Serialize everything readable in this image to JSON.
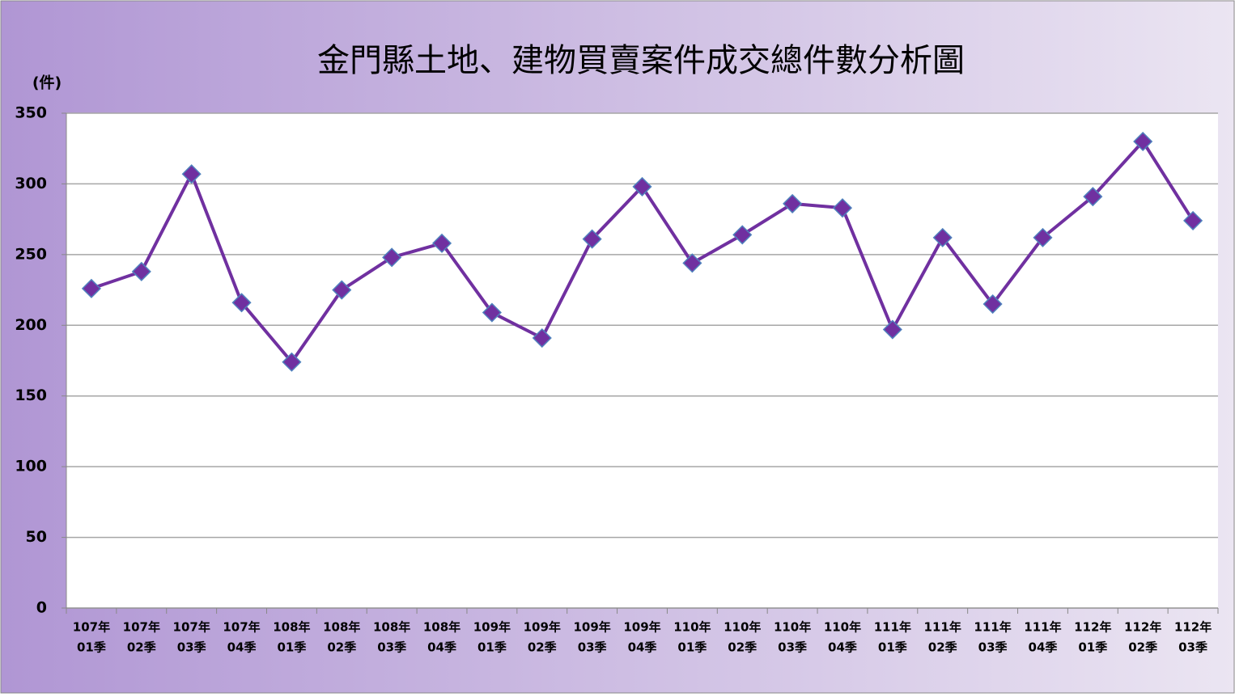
{
  "chart_data": {
    "type": "line",
    "title": "金門縣土地、建物買賣案件成交總件數分析圖",
    "y_label": "(件)",
    "categories": [
      [
        "107年",
        "01季"
      ],
      [
        "107年",
        "02季"
      ],
      [
        "107年",
        "03季"
      ],
      [
        "107年",
        "04季"
      ],
      [
        "108年",
        "01季"
      ],
      [
        "108年",
        "02季"
      ],
      [
        "108年",
        "03季"
      ],
      [
        "108年",
        "04季"
      ],
      [
        "109年",
        "01季"
      ],
      [
        "109年",
        "02季"
      ],
      [
        "109年",
        "03季"
      ],
      [
        "109年",
        "04季"
      ],
      [
        "110年",
        "01季"
      ],
      [
        "110年",
        "02季"
      ],
      [
        "110年",
        "03季"
      ],
      [
        "110年",
        "04季"
      ],
      [
        "111年",
        "01季"
      ],
      [
        "111年",
        "02季"
      ],
      [
        "111年",
        "03季"
      ],
      [
        "111年",
        "04季"
      ],
      [
        "112年",
        "01季"
      ],
      [
        "112年",
        "02季"
      ],
      [
        "112年",
        "03季"
      ]
    ],
    "values": [
      226,
      238,
      307,
      216,
      174,
      225,
      248,
      258,
      209,
      191,
      261,
      298,
      244,
      264,
      286,
      283,
      197,
      262,
      215,
      262,
      291,
      330,
      274
    ],
    "color": "#7030a0",
    "marker_edge": "#4f81bd",
    "ylim": [
      0,
      350
    ],
    "yticks": [
      0,
      50,
      100,
      150,
      200,
      250,
      300,
      350
    ],
    "grid": true
  }
}
